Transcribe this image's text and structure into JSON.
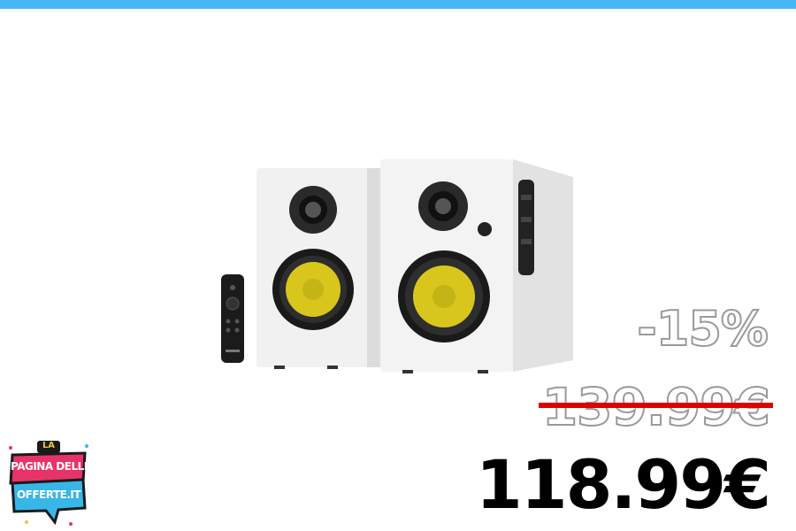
{
  "colors": {
    "top_bar": "#45b6f5",
    "strike": "#e00000",
    "logo_pink": "#e8336a",
    "logo_blue": "#38b6e8",
    "speaker_cone": "#e6d21a"
  },
  "product": {
    "image_icon": "speaker-pair-with-remote"
  },
  "pricing": {
    "discount": "-15%",
    "old_price": "139.99€",
    "new_price": "118.99€"
  },
  "logo": {
    "line1": "LA",
    "line2": "PAGINA DELLE",
    "line3": "OFFERTE.IT"
  }
}
